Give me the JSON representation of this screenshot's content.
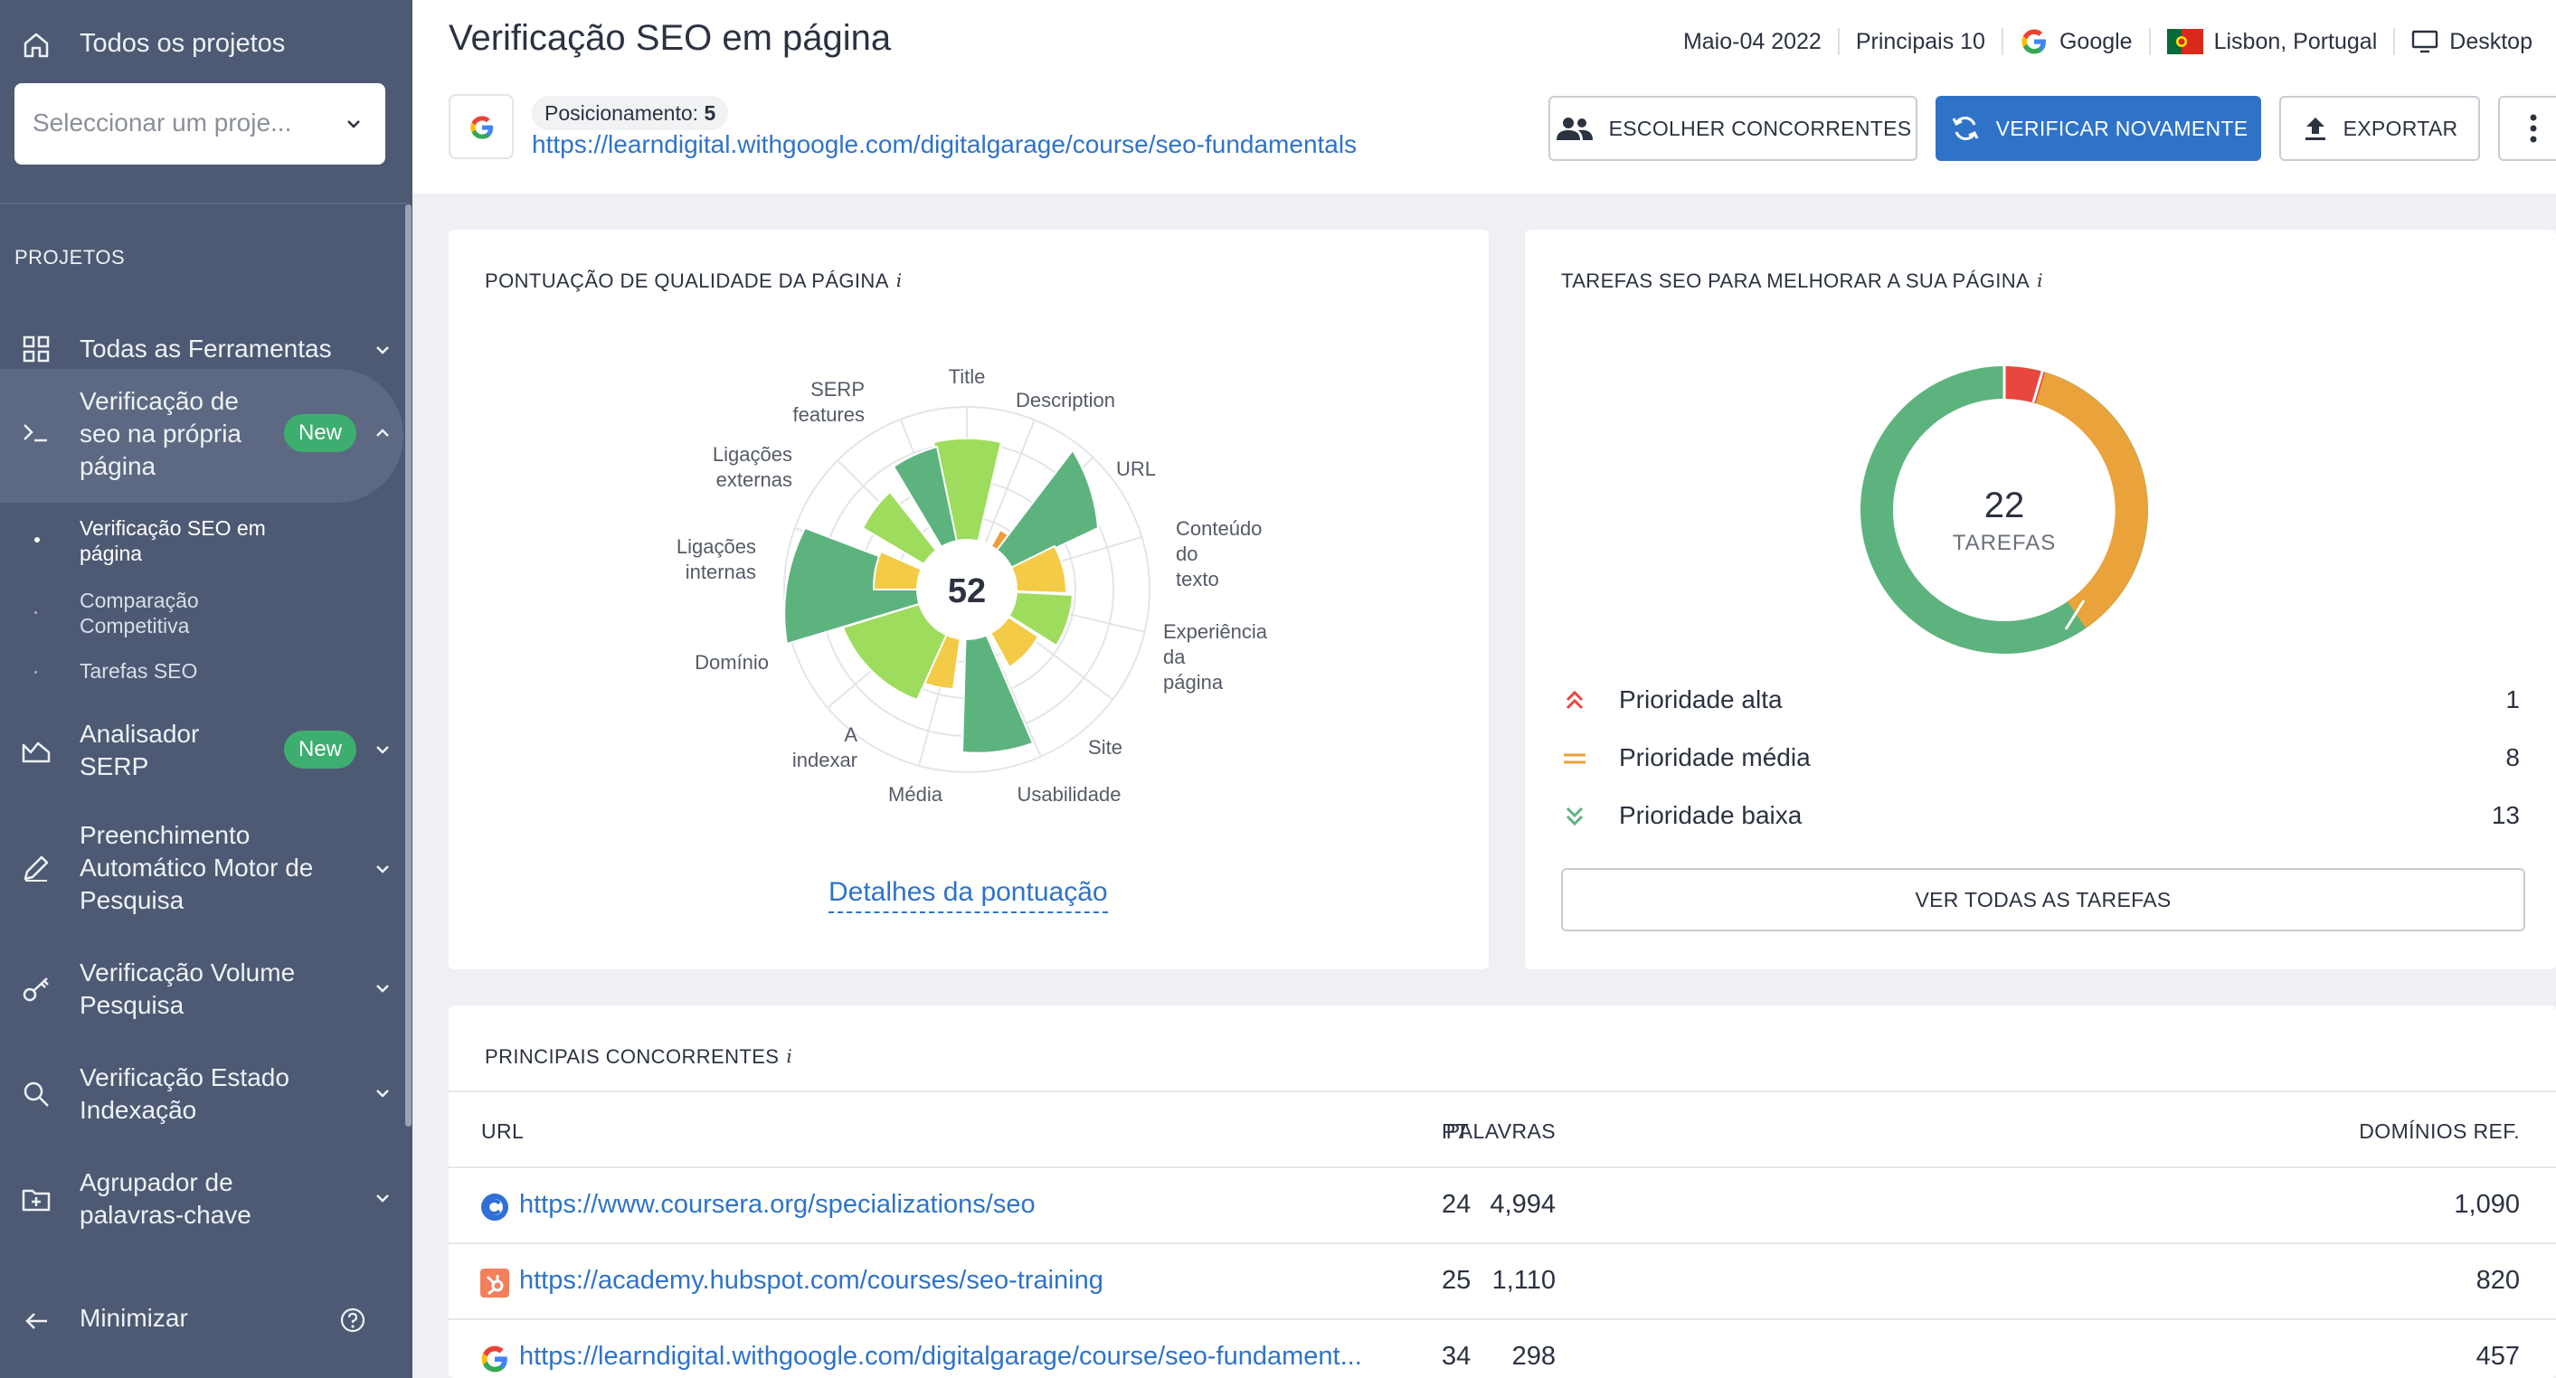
{
  "sidebar": {
    "home_label": "Todos os projetos",
    "project_select_placeholder": "Seleccionar um proje...",
    "section_title": "PROJETOS",
    "items": [
      {
        "label": "Todas as Ferramentas"
      },
      {
        "label_lines": [
          "Verificação de",
          "seo na própria",
          "página"
        ],
        "badge": "New"
      },
      {
        "label_lines": [
          "Analisador",
          "SERP"
        ],
        "badge": "New"
      },
      {
        "label_lines": [
          "Preenchimento",
          "Automático Motor de",
          "Pesquisa"
        ]
      },
      {
        "label_lines": [
          "Verificação Volume",
          "Pesquisa"
        ]
      },
      {
        "label_lines": [
          "Verificação Estado",
          "Indexação"
        ]
      },
      {
        "label_lines": [
          "Agrupador de",
          "palavras-chave"
        ]
      }
    ],
    "sub_items": [
      {
        "label_lines": [
          "Verificação SEO em",
          "página"
        ]
      },
      {
        "label_lines": [
          "Comparação",
          "Competitiva"
        ]
      },
      {
        "label_lines": [
          "Tarefas SEO"
        ]
      }
    ],
    "minimize_label": "Minimizar"
  },
  "header": {
    "title": "Verificação SEO em página",
    "date": "Maio-04 2022",
    "top": "Principais 10",
    "engine": "Google",
    "location": "Lisbon, Portugal",
    "device": "Desktop",
    "position_label": "Posicionamento:",
    "position_value": "5",
    "url": "https://learndigital.withgoogle.com/digitalgarage/course/seo-fundamentals",
    "buttons": {
      "competitors": "ESCOLHER CONCORRENTES",
      "recheck": "VERIFICAR NOVAMENTE",
      "export": "EXPORTAR"
    }
  },
  "score_card": {
    "title": "PONTUAÇÃO DE QUALIDADE DA PÁGINA",
    "info": "i",
    "score": "52",
    "details_link": "Detalhes da pontuação",
    "colors": {
      "dark_green": "#5db37e",
      "light_green": "#9ddc5d",
      "yellow": "#f3cb46",
      "orange": "#ef9d3c"
    },
    "labels": [
      {
        "lines": [
          "Title"
        ]
      },
      {
        "lines": [
          "Description"
        ]
      },
      {
        "lines": [
          "URL"
        ]
      },
      {
        "lines": [
          "Conteúdo",
          "do",
          "texto"
        ]
      },
      {
        "lines": [
          "Experiência",
          "da",
          "página"
        ]
      },
      {
        "lines": [
          "Site"
        ]
      },
      {
        "lines": [
          "Usabilidade"
        ]
      },
      {
        "lines": [
          "Média"
        ]
      },
      {
        "lines": [
          "A",
          "indexar"
        ]
      },
      {
        "lines": [
          "Domínio"
        ]
      },
      {
        "lines": [
          "Ligações",
          "internas"
        ]
      },
      {
        "lines": [
          "Ligações",
          "externas"
        ]
      },
      {
        "lines": [
          "SERP",
          "features"
        ]
      }
    ]
  },
  "tasks_card": {
    "title": "TAREFAS SEO PARA MELHORAR A SUA PÁGINA",
    "info": "i",
    "total": "22",
    "total_label": "TAREFAS",
    "priorities": [
      {
        "label": "Prioridade alta",
        "count": "1",
        "color": "#e8473f"
      },
      {
        "label": "Prioridade média",
        "count": "8",
        "color": "#eaa23a"
      },
      {
        "label": "Prioridade baixa",
        "count": "13",
        "color": "#5db37e"
      }
    ],
    "button": "VER TODAS AS TAREFAS"
  },
  "competitors": {
    "title": "PRINCIPAIS CONCORRENTES",
    "info": "i",
    "headers": {
      "url": "URL",
      "pt": "PT",
      "words": "PALAVRAS",
      "domains": "DOMÍNIOS REF."
    },
    "rows": [
      {
        "icon": "coursera-icon",
        "url": "https://www.coursera.org/specializations/seo",
        "pt": "24",
        "words": "4,994",
        "domains": "1,090"
      },
      {
        "icon": "hubspot-icon",
        "url": "https://academy.hubspot.com/courses/seo-training",
        "pt": "25",
        "words": "1,110",
        "domains": "820"
      },
      {
        "icon": "google-icon",
        "url": "https://learndigital.withgoogle.com/digitalgarage/course/seo-fundament...",
        "pt": "34",
        "words": "298",
        "domains": "457"
      }
    ]
  }
}
